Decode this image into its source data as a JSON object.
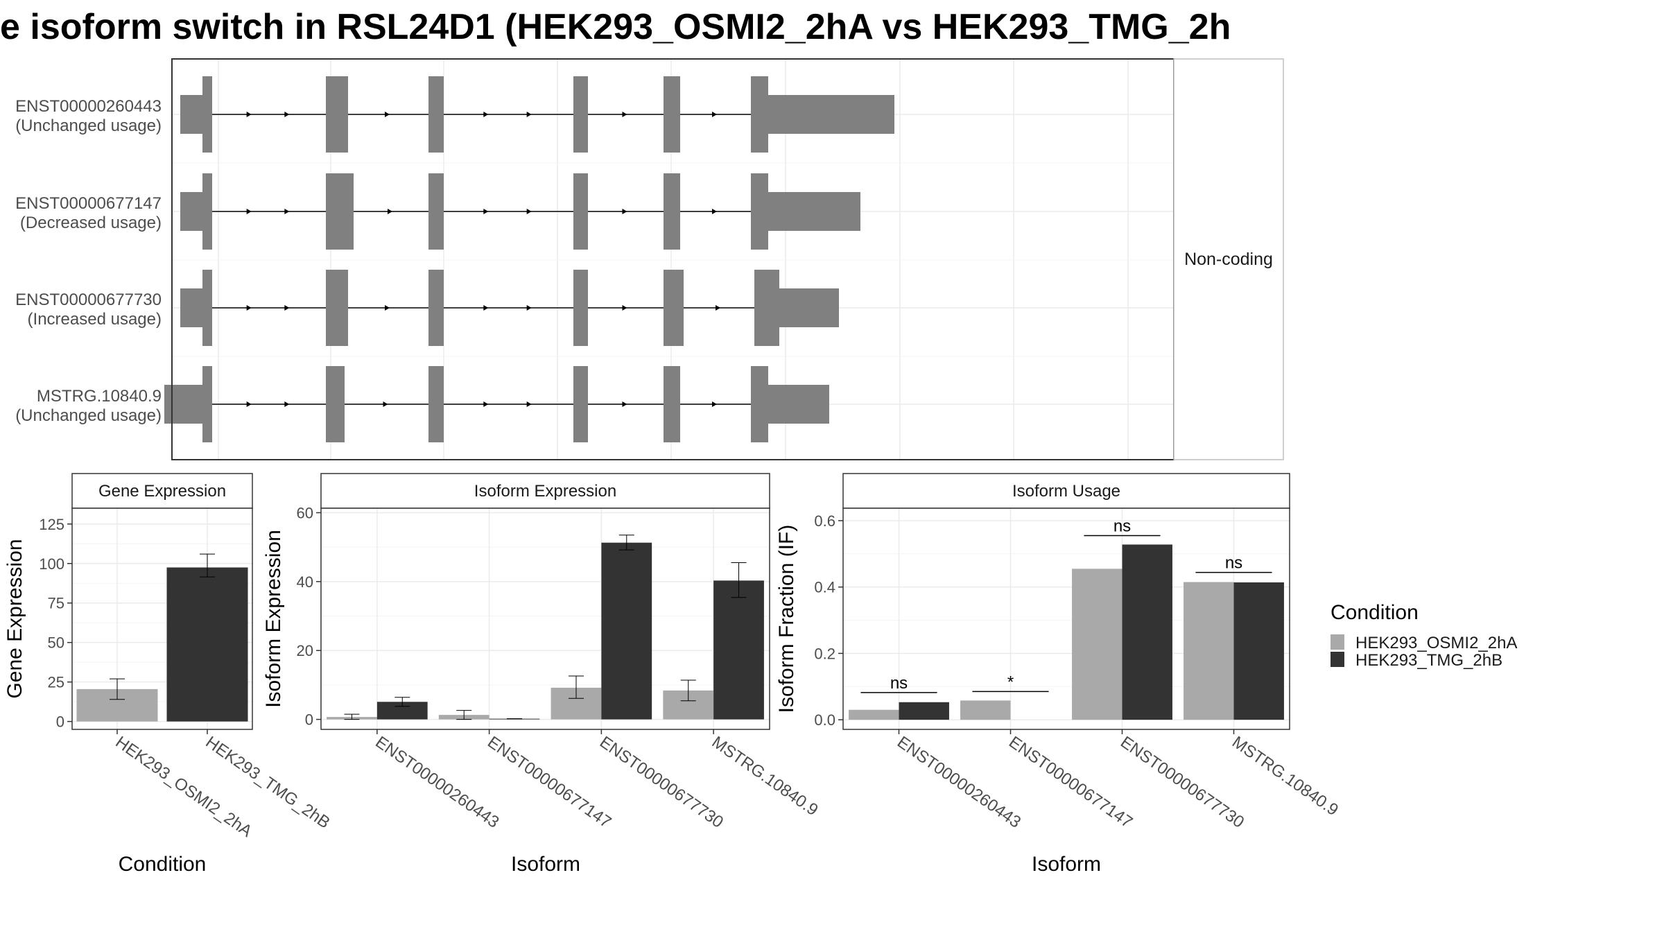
{
  "title": "e isoform switch in RSL24D1 (HEK293_OSMI2_2hA vs HEK293_TMG_2h",
  "colors": {
    "cond_a": "#a9a9a9",
    "cond_b": "#333333",
    "exon": "#808080",
    "grid": "#ebebeb",
    "border": "#333333",
    "strip_border": "#bdbdbd"
  },
  "chart_data": [
    {
      "type": "gene-structure",
      "strip_label": "Non-coding",
      "isoforms": [
        {
          "id": "ENST00000260443",
          "status": "(Unchanged usage)",
          "utr5": [
            260,
            292
          ],
          "cds_exons": [
            [
              292,
              306
            ],
            [
              470,
              502
            ],
            [
              618,
              640
            ],
            [
              827,
              848
            ],
            [
              957,
              981
            ],
            [
              1083,
              1108
            ]
          ],
          "utr3": [
            1108,
            1290
          ]
        },
        {
          "id": "ENST00000677147",
          "status": "(Decreased usage)",
          "utr5": [
            260,
            292
          ],
          "cds_exons": [
            [
              292,
              306
            ],
            [
              470,
              510
            ],
            [
              618,
              640
            ],
            [
              827,
              848
            ],
            [
              957,
              981
            ],
            [
              1083,
              1108
            ]
          ],
          "utr3": [
            1108,
            1241
          ]
        },
        {
          "id": "ENST00000677730",
          "status": "(Increased usage)",
          "utr5": [
            260,
            292
          ],
          "cds_exons": [
            [
              292,
              306
            ],
            [
              470,
              502
            ],
            [
              618,
              640
            ],
            [
              827,
              848
            ],
            [
              957,
              986
            ],
            [
              1088,
              1124
            ]
          ],
          "utr3": [
            1124,
            1210
          ]
        },
        {
          "id": "MSTRG.10840.9",
          "status": "(Unchanged usage)",
          "utr5": [
            237,
            292
          ],
          "cds_exons": [
            [
              292,
              306
            ],
            [
              470,
              497
            ],
            [
              618,
              640
            ],
            [
              827,
              848
            ],
            [
              957,
              981
            ],
            [
              1083,
              1108
            ]
          ],
          "utr3": [
            1108,
            1196
          ]
        }
      ]
    },
    {
      "type": "bar",
      "strip_label": "Gene Expression",
      "xlabel": "Condition",
      "ylabel": "Gene Expression",
      "ylim": [
        -5,
        135
      ],
      "yticks": [
        0,
        25,
        50,
        75,
        100,
        125
      ],
      "categories": [
        "HEK293_OSMI2_2hA",
        "HEK293_TMG_2hB"
      ],
      "values": [
        20.5,
        97.5
      ],
      "error_low": [
        14.0,
        91.5
      ],
      "error_high": [
        27.0,
        106.0
      ]
    },
    {
      "type": "bar",
      "strip_label": "Isoform Expression",
      "xlabel": "Isoform",
      "ylabel": "Isoform Expression",
      "ylim": [
        -2.9,
        61.3
      ],
      "yticks": [
        0,
        20,
        40,
        60
      ],
      "categories": [
        "ENST00000260443",
        "ENST00000677147",
        "ENST00000677730",
        "MSTRG.10840.9"
      ],
      "series": [
        {
          "name": "HEK293_OSMI2_2hA",
          "values": [
            0.7,
            1.3,
            9.2,
            8.4
          ],
          "error_low": [
            0.0,
            0.0,
            6.1,
            5.4
          ],
          "error_high": [
            1.5,
            2.6,
            12.6,
            11.4
          ]
        },
        {
          "name": "HEK293_TMG_2hB",
          "values": [
            5.1,
            0.2,
            51.3,
            40.3
          ],
          "error_low": [
            3.8,
            0.2,
            49.2,
            35.4
          ],
          "error_high": [
            6.4,
            0.2,
            53.5,
            45.5
          ]
        }
      ]
    },
    {
      "type": "bar",
      "strip_label": "Isoform Usage",
      "xlabel": "Isoform",
      "ylabel": "Isoform Fraction (IF)",
      "ylim": [
        -0.029,
        0.6375
      ],
      "yticks": [
        "0.0",
        "0.2",
        "0.4",
        "0.6"
      ],
      "categories": [
        "ENST00000260443",
        "ENST00000677147",
        "ENST00000677730",
        "MSTRG.10840.9"
      ],
      "series": [
        {
          "name": "HEK293_OSMI2_2hA",
          "values": [
            0.03,
            0.058,
            0.455,
            0.415
          ]
        },
        {
          "name": "HEK293_TMG_2hB",
          "values": [
            0.053,
            0.0,
            0.528,
            0.414
          ]
        }
      ],
      "significance": [
        {
          "label": "ns",
          "y": 0.082
        },
        {
          "label": "*",
          "y": 0.085
        },
        {
          "label": "ns",
          "y": 0.555
        },
        {
          "label": "ns",
          "y": 0.444
        }
      ]
    }
  ],
  "legend": {
    "title": "Condition",
    "entries": [
      "HEK293_OSMI2_2hA",
      "HEK293_TMG_2hB"
    ]
  }
}
